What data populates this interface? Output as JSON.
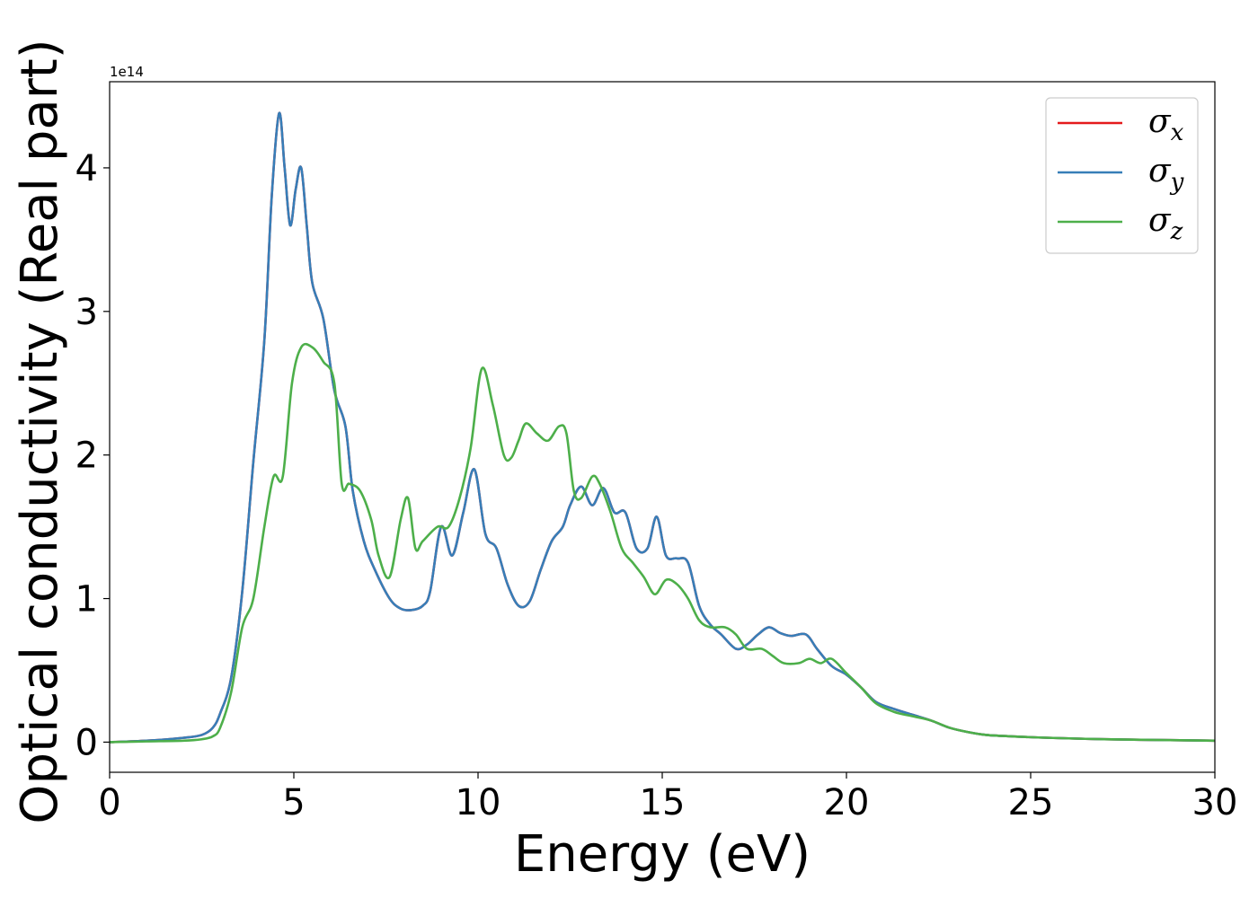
{
  "chart_data": {
    "type": "line",
    "title": "",
    "xlabel": "Energy (eV)",
    "ylabel": "Optical conductivity (Real part)",
    "y_offset_label": "1e14",
    "xlim": [
      0,
      30
    ],
    "ylim": [
      -0.21,
      4.6
    ],
    "x_ticks": [
      0,
      5,
      10,
      15,
      20,
      25,
      30
    ],
    "y_ticks": [
      0,
      1,
      2,
      3,
      4
    ],
    "grid": false,
    "legend_position": "top-right",
    "series": [
      {
        "name": "σx",
        "symbol": "σ",
        "subscript": "x",
        "color": "#e41a1c",
        "x": [
          0,
          1,
          2,
          2.5,
          2.8,
          3,
          3.3,
          3.6,
          3.9,
          4.2,
          4.4,
          4.6,
          4.75,
          4.9,
          5.05,
          5.2,
          5.35,
          5.5,
          5.8,
          6.1,
          6.4,
          6.6,
          6.9,
          7.2,
          7.6,
          7.9,
          8.2,
          8.5,
          8.7,
          9.0,
          9.3,
          9.6,
          9.9,
          10.2,
          10.5,
          10.8,
          11.1,
          11.4,
          11.7,
          12.0,
          12.3,
          12.5,
          12.8,
          13.1,
          13.4,
          13.7,
          14.0,
          14.3,
          14.6,
          14.85,
          15.1,
          15.4,
          15.7,
          16.0,
          16.3,
          16.6,
          17.0,
          17.3,
          17.6,
          17.9,
          18.2,
          18.5,
          18.9,
          19.2,
          19.6,
          20.0,
          20.4,
          20.8,
          21.3,
          21.8,
          22.3,
          22.8,
          23.3,
          23.8,
          24.5,
          25.5,
          27,
          28.5,
          30
        ],
        "values": [
          0,
          0.01,
          0.03,
          0.05,
          0.1,
          0.2,
          0.45,
          1.05,
          1.95,
          2.8,
          3.8,
          4.38,
          4.0,
          3.6,
          3.85,
          4.0,
          3.6,
          3.2,
          2.95,
          2.45,
          2.2,
          1.75,
          1.4,
          1.2,
          1.0,
          0.93,
          0.92,
          0.95,
          1.05,
          1.5,
          1.3,
          1.6,
          1.9,
          1.45,
          1.35,
          1.1,
          0.95,
          0.98,
          1.2,
          1.4,
          1.5,
          1.65,
          1.78,
          1.65,
          1.77,
          1.6,
          1.6,
          1.35,
          1.35,
          1.57,
          1.3,
          1.28,
          1.25,
          0.95,
          0.82,
          0.75,
          0.65,
          0.68,
          0.75,
          0.8,
          0.76,
          0.74,
          0.75,
          0.65,
          0.53,
          0.47,
          0.38,
          0.28,
          0.23,
          0.19,
          0.15,
          0.1,
          0.07,
          0.05,
          0.04,
          0.03,
          0.02,
          0.015,
          0.01
        ]
      },
      {
        "name": "σy",
        "symbol": "σ",
        "subscript": "y",
        "color": "#377eb8",
        "x": [
          0,
          1,
          2,
          2.5,
          2.8,
          3,
          3.3,
          3.6,
          3.9,
          4.2,
          4.4,
          4.6,
          4.75,
          4.9,
          5.05,
          5.2,
          5.35,
          5.5,
          5.8,
          6.1,
          6.4,
          6.6,
          6.9,
          7.2,
          7.6,
          7.9,
          8.2,
          8.5,
          8.7,
          9.0,
          9.3,
          9.6,
          9.9,
          10.2,
          10.5,
          10.8,
          11.1,
          11.4,
          11.7,
          12.0,
          12.3,
          12.5,
          12.8,
          13.1,
          13.4,
          13.7,
          14.0,
          14.3,
          14.6,
          14.85,
          15.1,
          15.4,
          15.7,
          16.0,
          16.3,
          16.6,
          17.0,
          17.3,
          17.6,
          17.9,
          18.2,
          18.5,
          18.9,
          19.2,
          19.6,
          20.0,
          20.4,
          20.8,
          21.3,
          21.8,
          22.3,
          22.8,
          23.3,
          23.8,
          24.5,
          25.5,
          27,
          28.5,
          30
        ],
        "values": [
          0,
          0.01,
          0.03,
          0.05,
          0.1,
          0.2,
          0.45,
          1.05,
          1.95,
          2.8,
          3.8,
          4.38,
          4.0,
          3.6,
          3.85,
          4.0,
          3.6,
          3.2,
          2.95,
          2.45,
          2.2,
          1.75,
          1.4,
          1.2,
          1.0,
          0.93,
          0.92,
          0.95,
          1.05,
          1.5,
          1.3,
          1.6,
          1.9,
          1.45,
          1.35,
          1.1,
          0.95,
          0.98,
          1.2,
          1.4,
          1.5,
          1.65,
          1.78,
          1.65,
          1.77,
          1.6,
          1.6,
          1.35,
          1.35,
          1.57,
          1.3,
          1.28,
          1.25,
          0.95,
          0.82,
          0.75,
          0.65,
          0.68,
          0.75,
          0.8,
          0.76,
          0.74,
          0.75,
          0.65,
          0.53,
          0.47,
          0.38,
          0.28,
          0.23,
          0.19,
          0.15,
          0.1,
          0.07,
          0.05,
          0.04,
          0.03,
          0.02,
          0.015,
          0.01
        ]
      },
      {
        "name": "σz",
        "symbol": "σ",
        "subscript": "z",
        "color": "#4daf4a",
        "x": [
          0,
          1,
          2,
          2.5,
          2.8,
          3.0,
          3.3,
          3.6,
          3.9,
          4.2,
          4.45,
          4.7,
          4.95,
          5.2,
          5.5,
          5.8,
          6.1,
          6.3,
          6.5,
          6.8,
          7.1,
          7.3,
          7.6,
          7.9,
          8.1,
          8.3,
          8.5,
          8.9,
          9.2,
          9.5,
          9.8,
          10.1,
          10.4,
          10.7,
          10.9,
          11.1,
          11.3,
          11.6,
          11.9,
          12.2,
          12.4,
          12.6,
          12.8,
          13.1,
          13.3,
          13.6,
          13.9,
          14.2,
          14.5,
          14.8,
          15.1,
          15.4,
          15.7,
          16.0,
          16.3,
          16.7,
          17.0,
          17.3,
          17.7,
          18.0,
          18.3,
          18.7,
          19.0,
          19.3,
          19.6,
          20.0,
          20.4,
          20.8,
          21.3,
          21.8,
          22.3,
          22.8,
          23.3,
          23.8,
          24.5,
          25.5,
          27,
          28.5,
          30
        ],
        "values": [
          0,
          0.005,
          0.01,
          0.02,
          0.04,
          0.1,
          0.35,
          0.8,
          1.0,
          1.5,
          1.85,
          1.85,
          2.5,
          2.75,
          2.75,
          2.65,
          2.5,
          1.8,
          1.8,
          1.75,
          1.55,
          1.3,
          1.15,
          1.55,
          1.7,
          1.35,
          1.4,
          1.5,
          1.5,
          1.7,
          2.05,
          2.6,
          2.35,
          2.0,
          1.98,
          2.1,
          2.22,
          2.15,
          2.1,
          2.2,
          2.15,
          1.75,
          1.7,
          1.85,
          1.8,
          1.6,
          1.35,
          1.25,
          1.15,
          1.03,
          1.13,
          1.1,
          1.0,
          0.85,
          0.8,
          0.8,
          0.75,
          0.65,
          0.65,
          0.6,
          0.55,
          0.55,
          0.58,
          0.55,
          0.58,
          0.48,
          0.38,
          0.27,
          0.21,
          0.18,
          0.15,
          0.1,
          0.07,
          0.05,
          0.04,
          0.03,
          0.02,
          0.015,
          0.01
        ]
      }
    ]
  }
}
